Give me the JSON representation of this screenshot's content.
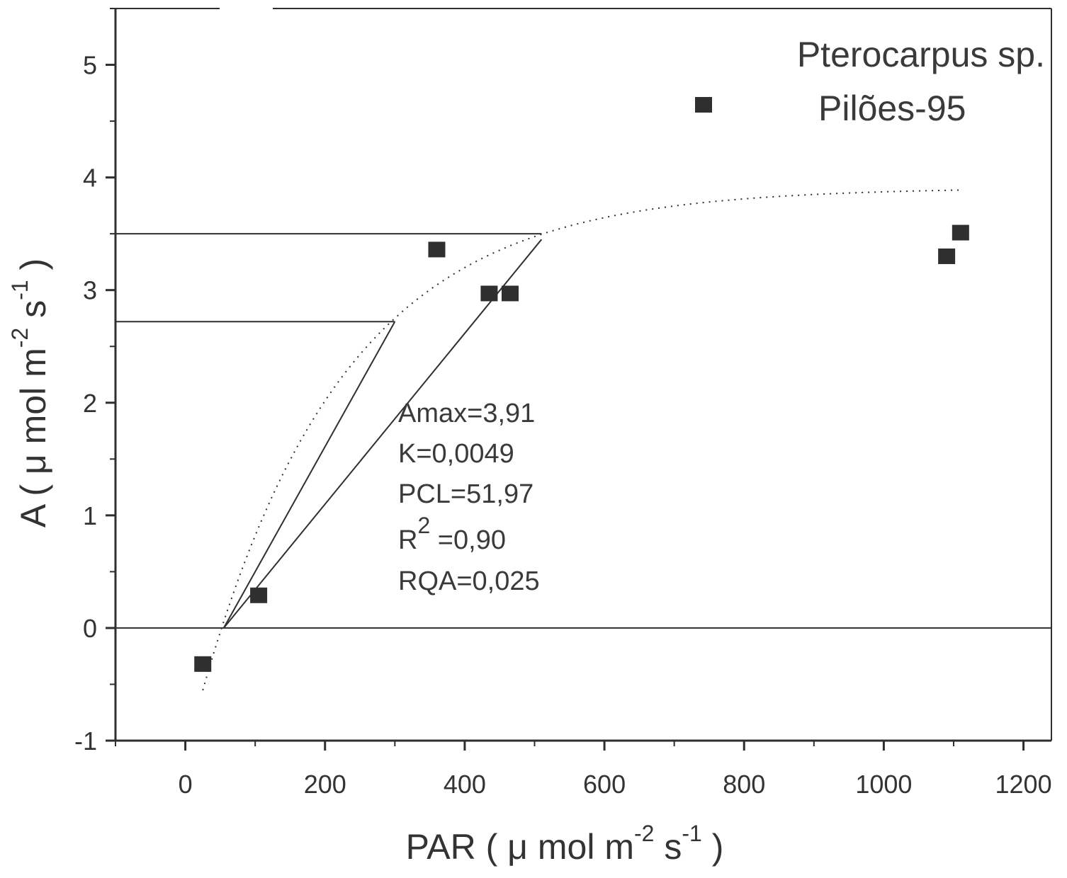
{
  "chart_data": {
    "type": "scatter",
    "title": "",
    "xlabel": {
      "main": "PAR ( μ mol m",
      "exp1": "-2",
      "mid": " s",
      "exp2": "-1",
      "end": " )"
    },
    "ylabel": {
      "main": "A ( μ mol m",
      "exp1": "-2",
      "mid": " s",
      "exp2": "-1",
      "end": " )"
    },
    "xlim": [
      -100,
      1240
    ],
    "ylim": [
      -1,
      5.5
    ],
    "xticks": [
      0,
      200,
      400,
      600,
      800,
      1000,
      1200
    ],
    "xtick_labels": [
      "0",
      "200",
      "400",
      "600",
      "800",
      "1000",
      "1200"
    ],
    "yticks": [
      -1,
      0,
      1,
      2,
      3,
      4,
      5
    ],
    "ytick_labels": [
      "-1",
      "0",
      "1",
      "2",
      "3",
      "4",
      "5"
    ],
    "grid": false,
    "legend": {
      "position": "top-right",
      "line1": "Pterocarpus sp.",
      "line2": "Pilões-95",
      "marker": "square"
    },
    "series": [
      {
        "marker": "square",
        "color": "#2f2f2f",
        "points": [
          {
            "x": 25,
            "y": -0.32
          },
          {
            "x": 105,
            "y": 0.29
          },
          {
            "x": 360,
            "y": 3.36
          },
          {
            "x": 435,
            "y": 2.97
          },
          {
            "x": 465,
            "y": 2.97
          },
          {
            "x": 1090,
            "y": 3.3
          },
          {
            "x": 1110,
            "y": 3.51
          }
        ]
      }
    ],
    "fitted_curve": {
      "style": "dotted",
      "model": "Amax*(1-exp(-K*(PAR-PCL)))",
      "Amax": 3.91,
      "K": 0.0049,
      "PCL": 51.97,
      "x_range": [
        25,
        1110
      ]
    },
    "reference_lines": [
      {
        "type": "horizontal",
        "y": 0,
        "x_from": -100,
        "x_to": 1240
      },
      {
        "type": "horizontal",
        "y": 3.5,
        "x_from": -100,
        "x_to": 510
      },
      {
        "type": "horizontal",
        "y": 2.72,
        "x_from": -100,
        "x_to": 300
      },
      {
        "type": "segment",
        "points": [
          [
            55,
            0
          ],
          [
            510,
            3.45
          ]
        ]
      },
      {
        "type": "segment",
        "points": [
          [
            55,
            0
          ],
          [
            300,
            2.72
          ]
        ]
      }
    ],
    "annotations": [
      {
        "text": "Amax=3,91"
      },
      {
        "text": "K=0,0049"
      },
      {
        "text": "PCL=51,97"
      },
      {
        "r2_label": "R",
        "r2_sup": "2",
        "r2_value": " =0,90"
      },
      {
        "text": "RQA=0,025"
      }
    ],
    "colors": {
      "ink": "#2f2f2f",
      "background": "#ffffff"
    }
  }
}
